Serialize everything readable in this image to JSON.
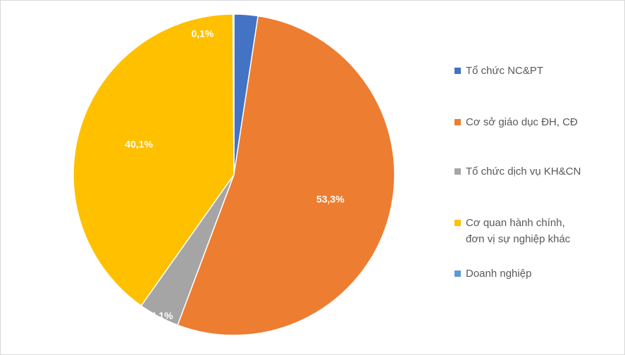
{
  "chart_data": {
    "type": "pie",
    "title": "",
    "start_angle_deg": 0,
    "direction": "clockwise",
    "slices": [
      {
        "label": "Tổ chức NC&PT",
        "value": 2.4,
        "display": "2,4%",
        "color": "#4472C4"
      },
      {
        "label": "Cơ sở giáo dục ĐH, CĐ",
        "value": 53.3,
        "display": "53,3%",
        "color": "#ED7D31"
      },
      {
        "label": "Tổ chức dịch vụ KH&CN",
        "value": 4.1,
        "display": "4,1%",
        "color": "#A5A5A5"
      },
      {
        "label": "Cơ quan hành chính,\nđơn vị sự nghiệp khác",
        "value": 40.1,
        "display": "40,1%",
        "color": "#FFC000"
      },
      {
        "label": "Doanh nghiệp",
        "value": 0.1,
        "display": "0,1%",
        "color": "#5B9BD5"
      }
    ],
    "legend_position": "right"
  }
}
